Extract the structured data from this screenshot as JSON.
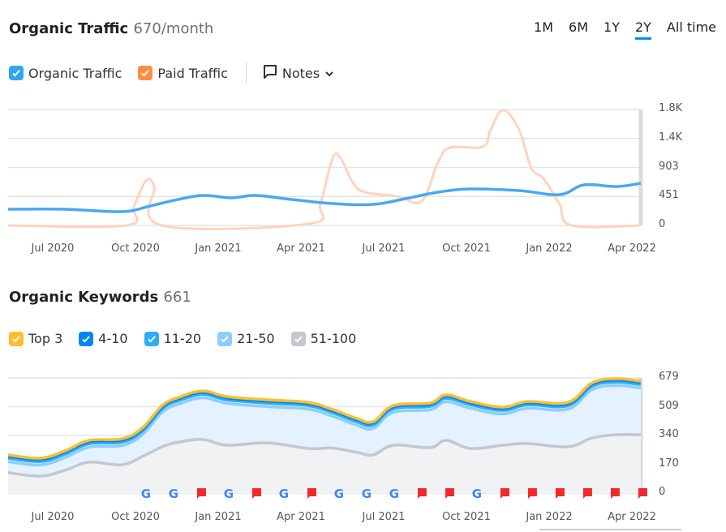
{
  "traffic": {
    "title": "Organic Traffic",
    "subtitle": "670/month",
    "periods": [
      "1M",
      "6M",
      "1Y",
      "2Y",
      "All time"
    ],
    "active_period": "2Y",
    "legend": [
      {
        "label": "Organic Traffic",
        "color": "#2fa6f2"
      },
      {
        "label": "Paid Traffic",
        "color": "#ff8c45"
      }
    ],
    "notes_label": "Notes"
  },
  "keywords": {
    "title": "Organic Keywords",
    "subtitle": "661",
    "legend": [
      {
        "label": "Top 3",
        "color": "#ffbd2e"
      },
      {
        "label": "4-10",
        "color": "#0087f0"
      },
      {
        "label": "11-20",
        "color": "#2bb0f7"
      },
      {
        "label": "21-50",
        "color": "#8fcdfc"
      },
      {
        "label": "51-100",
        "color": "#c5c7cf"
      }
    ]
  },
  "chart_data": [
    {
      "type": "line",
      "title": "Organic Traffic",
      "x_unit": "months since Jul 2020",
      "x_ticks": [
        "Jul 2020",
        "Oct 2020",
        "Jan 2021",
        "Apr 2021",
        "Jul 2021",
        "Oct 2021",
        "Jan 2022",
        "Apr 2022"
      ],
      "y_ticks": [
        "0",
        "451",
        "903",
        "1.4K",
        "1.8K"
      ],
      "ylim": [
        0,
        1806
      ],
      "grid": true,
      "series": [
        {
          "name": "Organic Traffic",
          "color": "#4aa8ee",
          "x": [
            -1.62,
            0.44,
            2.5,
            3.53,
            4.41,
            5.44,
            6.47,
            7.35,
            8.68,
            10.15,
            11.62,
            12.79,
            13.97,
            15.15,
            16.91,
            18.38,
            19.26,
            20.44,
            21.32
          ],
          "y": [
            253,
            253,
            215,
            303,
            392,
            467,
            430,
            467,
            404,
            341,
            328,
            417,
            518,
            568,
            543,
            480,
            631,
            606,
            657
          ]
        },
        {
          "name": "Paid Traffic",
          "color": "#ffd3bd",
          "x": [
            -1.62,
            2.65,
            2.94,
            3.38,
            3.68,
            3.97,
            9.26,
            9.71,
            10.15,
            10.44,
            10.88,
            11.32,
            12.5,
            13.38,
            13.97,
            14.41,
            15.59,
            15.88,
            16.32,
            16.91,
            17.35,
            17.79,
            18.38,
            18.82,
            21.32
          ],
          "y": [
            0,
            0,
            290,
            695,
            606,
            0,
            25,
            354,
            1048,
            1048,
            669,
            518,
            455,
            379,
            985,
            1212,
            1225,
            1490,
            1793,
            1490,
            897,
            733,
            328,
            0,
            0
          ]
        }
      ]
    },
    {
      "type": "area",
      "stacked": true,
      "title": "Organic Keywords",
      "x_unit": "months since Jul 2020",
      "x_ticks": [
        "Jul 2020",
        "Oct 2020",
        "Jan 2021",
        "Apr 2021",
        "Jul 2021",
        "Oct 2021",
        "Jan 2022",
        "Apr 2022"
      ],
      "y_ticks": [
        "0",
        "170",
        "340",
        "509",
        "679"
      ],
      "ylim": [
        0,
        679
      ],
      "grid": true,
      "x": [
        -1.62,
        -0.44,
        0.44,
        1.32,
        2.5,
        3.24,
        3.97,
        4.56,
        5.44,
        6.32,
        7.79,
        9.26,
        10.15,
        11.03,
        11.62,
        12.35,
        13.68,
        14.26,
        15.15,
        16.32,
        17.21,
        18.68,
        19.56,
        20.44,
        21.32
      ],
      "series": [
        {
          "name": "51-100",
          "values": [
            120,
            100,
            134,
            182,
            167,
            215,
            273,
            300,
            316,
            282,
            296,
            263,
            265,
            240,
            225,
            282,
            268,
            311,
            263,
            282,
            292,
            273,
            325,
            344,
            344
          ]
        },
        {
          "name": "21-50",
          "values": [
            65,
            66,
            75,
            89,
            113,
            128,
            203,
            224,
            246,
            247,
            214,
            232,
            188,
            160,
            156,
            194,
            223,
            228,
            237,
            185,
            208,
            222,
            285,
            290,
            276
          ]
        },
        {
          "name": "11-20",
          "values": [
            20,
            20,
            20,
            20,
            20,
            20,
            20,
            20,
            20,
            20,
            20,
            20,
            20,
            20,
            20,
            20,
            20,
            20,
            20,
            20,
            20,
            20,
            20,
            20,
            20
          ]
        },
        {
          "name": "4-10",
          "values": [
            12,
            12,
            12,
            12,
            12,
            12,
            12,
            12,
            12,
            12,
            12,
            12,
            12,
            12,
            12,
            12,
            12,
            12,
            12,
            12,
            12,
            12,
            12,
            12,
            12
          ]
        },
        {
          "name": "Top 3",
          "values": [
            8,
            8,
            8,
            8,
            8,
            8,
            8,
            8,
            8,
            8,
            8,
            8,
            8,
            8,
            8,
            8,
            8,
            8,
            8,
            8,
            8,
            8,
            8,
            8,
            8
          ]
        }
      ],
      "markers": [
        "google",
        "google",
        "note",
        "google",
        "note",
        "google",
        "note",
        "google",
        "google",
        "google",
        "note",
        "note",
        "google",
        "note",
        "note",
        "note",
        "note",
        "note",
        "note"
      ]
    }
  ]
}
